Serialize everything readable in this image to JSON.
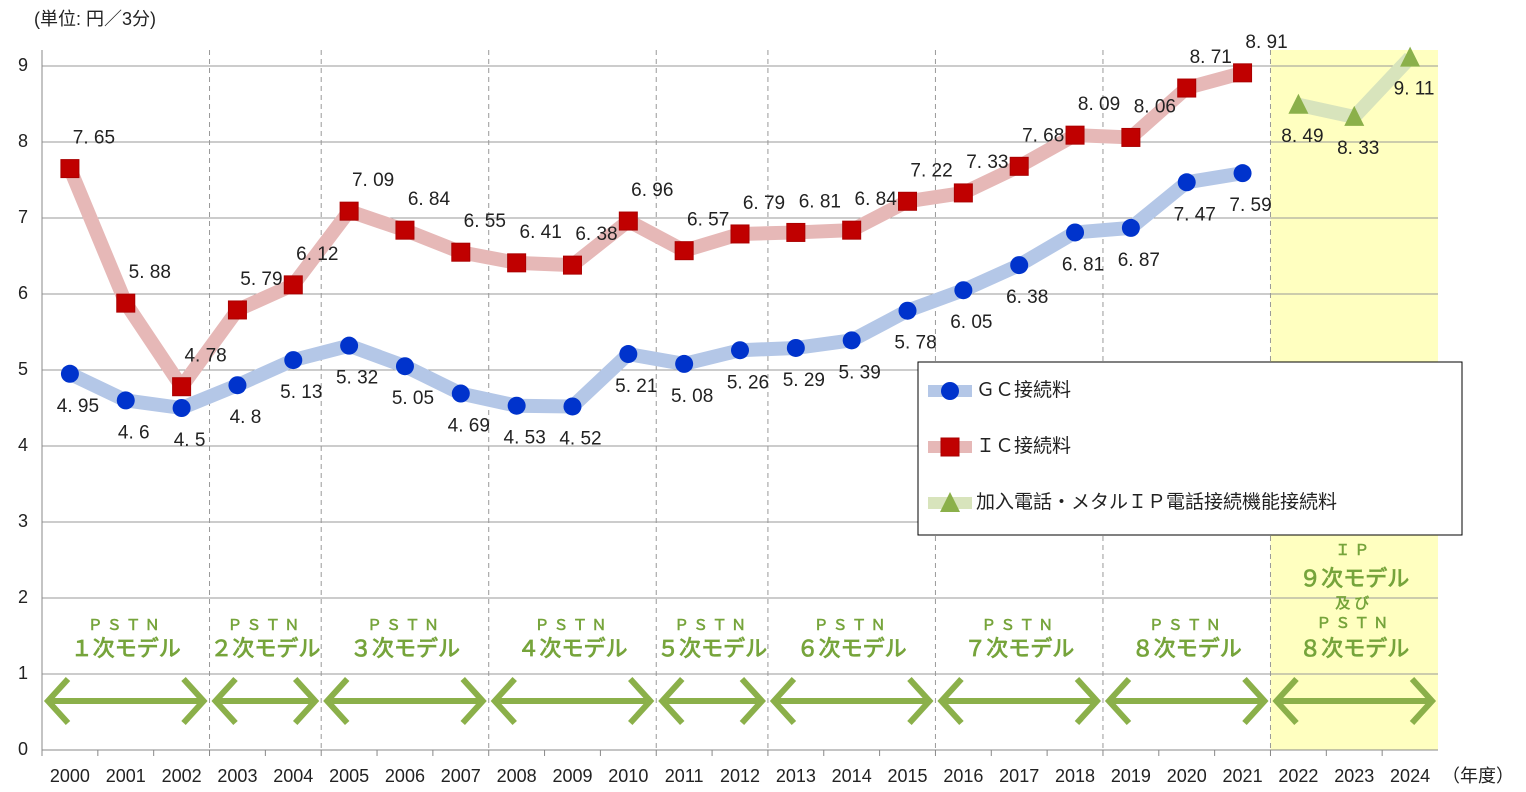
{
  "chart_data": {
    "type": "line",
    "unit_label": "(単位: 円／3分)",
    "x_label": "（年度）",
    "categories": [
      "2000",
      "2001",
      "2002",
      "2003",
      "2004",
      "2005",
      "2006",
      "2007",
      "2008",
      "2009",
      "2010",
      "2011",
      "2012",
      "2013",
      "2014",
      "2015",
      "2016",
      "2017",
      "2018",
      "2019",
      "2020",
      "2021",
      "2022",
      "2023",
      "2024"
    ],
    "ylim": [
      0,
      9
    ],
    "yticks": [
      0,
      1,
      2,
      3,
      4,
      5,
      6,
      7,
      8,
      9
    ],
    "grid": true,
    "series": [
      {
        "name": "ＧＣ接続料",
        "color": "#0033cc",
        "line_color": "#b4c7e7",
        "marker": "circle",
        "values": [
          4.95,
          4.6,
          4.5,
          4.8,
          5.13,
          5.32,
          5.05,
          4.69,
          4.53,
          4.52,
          5.21,
          5.08,
          5.26,
          5.29,
          5.39,
          5.78,
          6.05,
          6.38,
          6.81,
          6.87,
          7.47,
          7.59,
          null,
          null,
          null
        ],
        "value_labels": [
          "4. 95",
          "4. 6",
          "4. 5",
          "4. 8",
          "5. 13",
          "5. 32",
          "5. 05",
          "4. 69",
          "4. 53",
          "4. 52",
          "5. 21",
          "5. 08",
          "5. 26",
          "5. 29",
          "5. 39",
          "5. 78",
          "6. 05",
          "6. 38",
          "6. 81",
          "6. 87",
          "7. 47",
          "7. 59",
          null,
          null,
          null
        ]
      },
      {
        "name": "ＩＣ接続料",
        "color": "#c00000",
        "line_color": "#e6b8b7",
        "marker": "square",
        "values": [
          7.65,
          5.88,
          4.78,
          5.79,
          6.12,
          7.09,
          6.84,
          6.55,
          6.41,
          6.38,
          6.96,
          6.57,
          6.79,
          6.81,
          6.84,
          7.22,
          7.33,
          7.68,
          8.09,
          8.06,
          8.71,
          8.91,
          null,
          null,
          null
        ],
        "value_labels": [
          "7. 65",
          "5. 88",
          "4. 78",
          "5. 79",
          "6. 12",
          "7. 09",
          "6. 84",
          "6. 55",
          "6. 41",
          "6. 38",
          "6. 96",
          "6. 57",
          "6. 79",
          "6. 81",
          "6. 84",
          "7. 22",
          "7. 33",
          "7. 68",
          "8. 09",
          "8. 06",
          "8. 71",
          "8. 91",
          null,
          null,
          null
        ]
      },
      {
        "name": "加入電話・メタルＩＰ電話接続機能接続料",
        "color": "#8bb04a",
        "line_color": "#d8e4bc",
        "marker": "triangle",
        "values": [
          null,
          null,
          null,
          null,
          null,
          null,
          null,
          null,
          null,
          null,
          null,
          null,
          null,
          null,
          null,
          null,
          null,
          null,
          null,
          null,
          null,
          null,
          8.49,
          8.33,
          9.11
        ],
        "value_labels": [
          null,
          null,
          null,
          null,
          null,
          null,
          null,
          null,
          null,
          null,
          null,
          null,
          null,
          null,
          null,
          null,
          null,
          null,
          null,
          null,
          null,
          null,
          "8. 49",
          "8. 33",
          "9. 11"
        ]
      }
    ],
    "models": [
      {
        "lines": [
          "ＰＳＴＮ",
          "１次モデル"
        ]
      },
      {
        "lines": [
          "ＰＳＴＮ",
          "２次モデル"
        ]
      },
      {
        "lines": [
          "ＰＳＴＮ",
          "３次モデル"
        ]
      },
      {
        "lines": [
          "ＰＳＴＮ",
          "４次モデル"
        ]
      },
      {
        "lines": [
          "ＰＳＴＮ",
          "５次モデル"
        ]
      },
      {
        "lines": [
          "ＰＳＴＮ",
          "６次モデル"
        ]
      },
      {
        "lines": [
          "ＰＳＴＮ",
          "７次モデル"
        ]
      },
      {
        "lines": [
          "ＰＳＴＮ",
          "８次モデル"
        ]
      },
      {
        "lines": [
          "ＩＰ",
          "９次モデル",
          "及び",
          "ＰＳＴＮ",
          "８次モデル"
        ]
      }
    ]
  }
}
